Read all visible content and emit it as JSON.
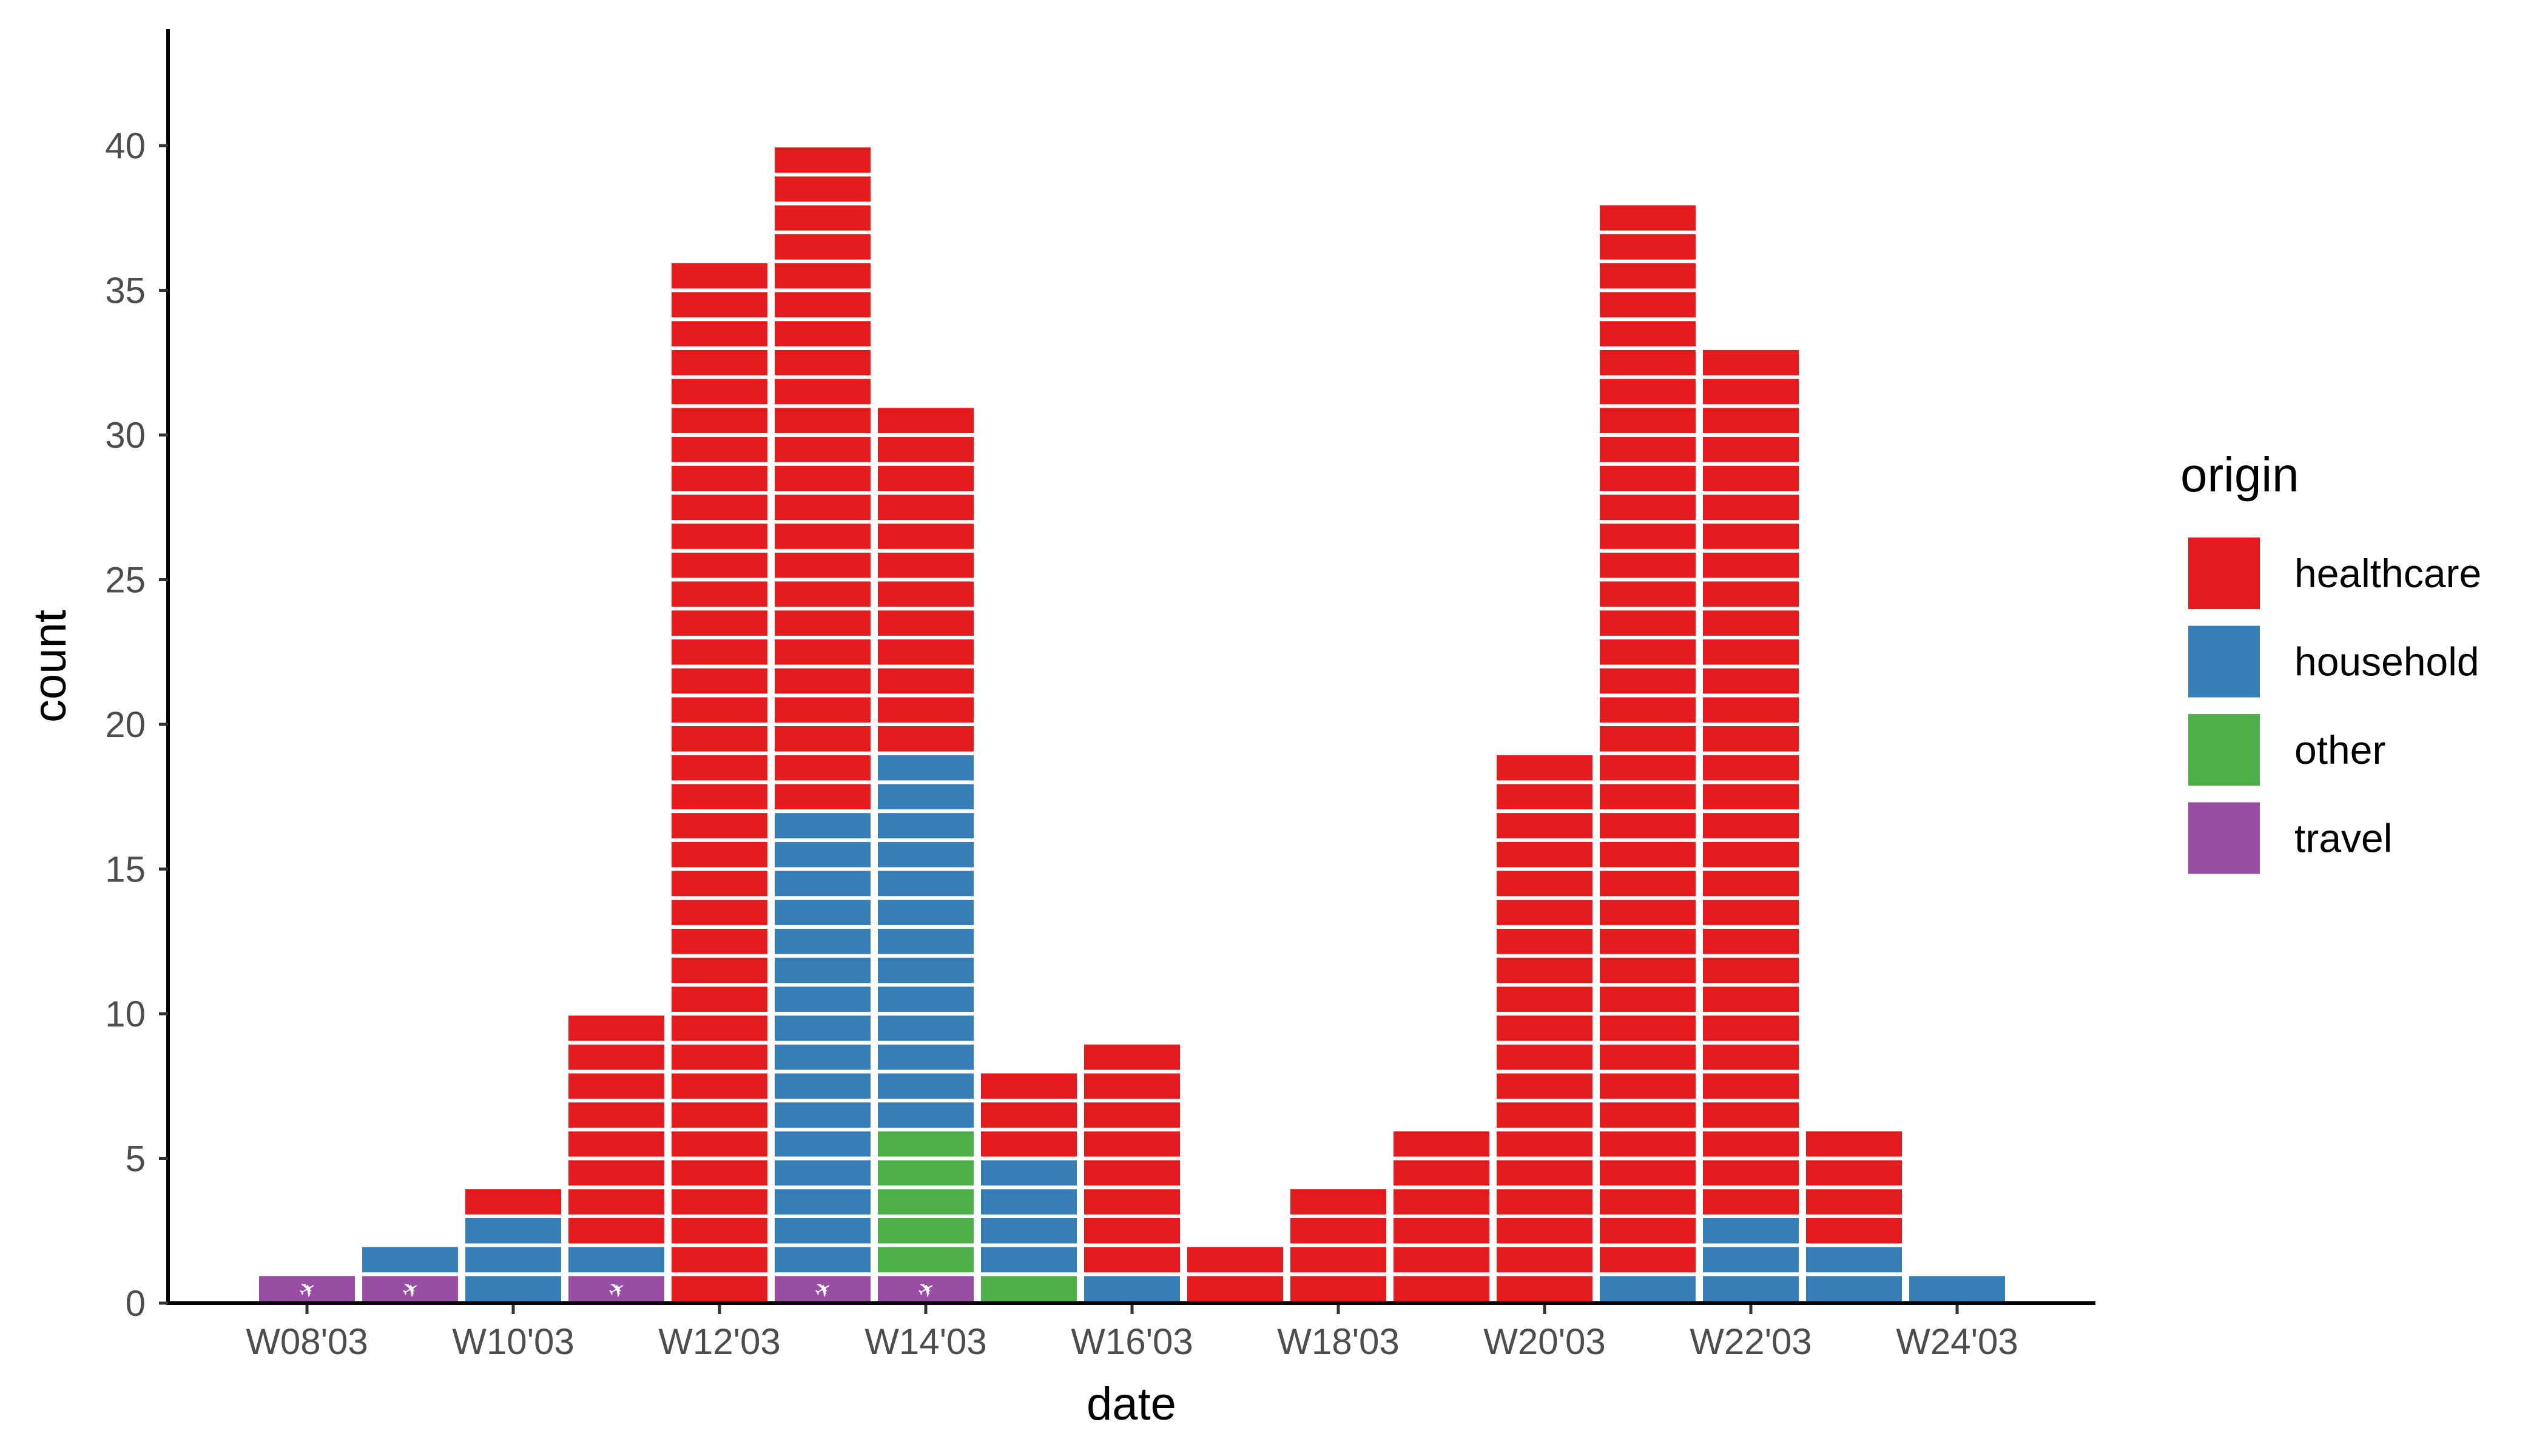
{
  "chart_data": {
    "type": "bar",
    "stacked": true,
    "xlabel": "date",
    "ylabel": "count",
    "ylim": [
      0,
      43
    ],
    "yticks": [
      0,
      5,
      10,
      15,
      20,
      25,
      30,
      35,
      40
    ],
    "ytick_labels": [
      "0",
      "5",
      "10",
      "15",
      "20",
      "25",
      "30",
      "35",
      "40"
    ],
    "categories": [
      "W08'03",
      "W09'03",
      "W10'03",
      "W11'03",
      "W12'03",
      "W13'03",
      "W14'03",
      "W15'03",
      "W16'03",
      "W17'03",
      "W18'03",
      "W19'03",
      "W20'03",
      "W21'03",
      "W22'03",
      "W23'03",
      "W24'03"
    ],
    "xtick_labels": [
      "W08'03",
      "W10'03",
      "W12'03",
      "W14'03",
      "W16'03",
      "W18'03",
      "W20'03",
      "W22'03",
      "W24'03"
    ],
    "grid": false,
    "legend": {
      "title": "origin",
      "placement": "right"
    },
    "stack_order_bottom_to_top": [
      "travel",
      "other",
      "household",
      "healthcare"
    ],
    "series": [
      {
        "name": "healthcare",
        "color": "#E41A1C",
        "values": [
          0,
          0,
          1,
          8,
          36,
          23,
          12,
          3,
          8,
          2,
          4,
          6,
          19,
          37,
          30,
          4,
          0
        ]
      },
      {
        "name": "household",
        "color": "#377EB8",
        "values": [
          0,
          1,
          3,
          1,
          0,
          16,
          13,
          4,
          1,
          0,
          0,
          0,
          0,
          1,
          3,
          2,
          1
        ]
      },
      {
        "name": "other",
        "color": "#4DAF4A",
        "values": [
          0,
          0,
          0,
          0,
          0,
          0,
          5,
          1,
          0,
          0,
          0,
          0,
          0,
          0,
          0,
          0,
          0
        ]
      },
      {
        "name": "travel",
        "color": "#984EA3",
        "values": [
          1,
          1,
          0,
          1,
          0,
          1,
          1,
          0,
          0,
          0,
          0,
          0,
          0,
          0,
          0,
          0,
          0
        ],
        "icon": "airplane-icon"
      }
    ],
    "legend_entries": [
      "healthcare",
      "household",
      "other",
      "travel"
    ]
  }
}
